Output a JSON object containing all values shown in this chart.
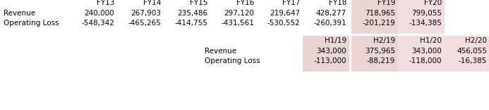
{
  "top_headers": [
    "FY13",
    "FY14",
    "FY15",
    "FY16",
    "FY17",
    "FY18",
    "FY19",
    "FY20"
  ],
  "revenue_row": [
    "240,000",
    "267,903",
    "235,486",
    "297,120",
    "219,647",
    "428,277",
    "718,965",
    "799,055"
  ],
  "op_loss_row": [
    "-548,342",
    "-465,265",
    "-414,755",
    "-431,561",
    "-530,552",
    "-260,391",
    "-201,219",
    "-134,385"
  ],
  "bottom_headers": [
    "H1/19",
    "H2/19",
    "H1/20",
    "H2/20"
  ],
  "bottom_revenue": [
    "343,000",
    "375,965",
    "343,000",
    "456,055"
  ],
  "bottom_op_loss": [
    "-113,000",
    "-88,219",
    "-118,000",
    "-16,385"
  ],
  "highlight_fy19": "#e8d5d4",
  "highlight_fy20": "#f2dede",
  "highlight_h119": "#e8d5d4",
  "highlight_h219": "#e8d5d4",
  "highlight_h120": "#f2dede",
  "highlight_h220": "#f2dede",
  "bg_color": "#ffffff",
  "text_color": "#000000",
  "font_size": 7.5,
  "font_family": "DejaVu Sans"
}
